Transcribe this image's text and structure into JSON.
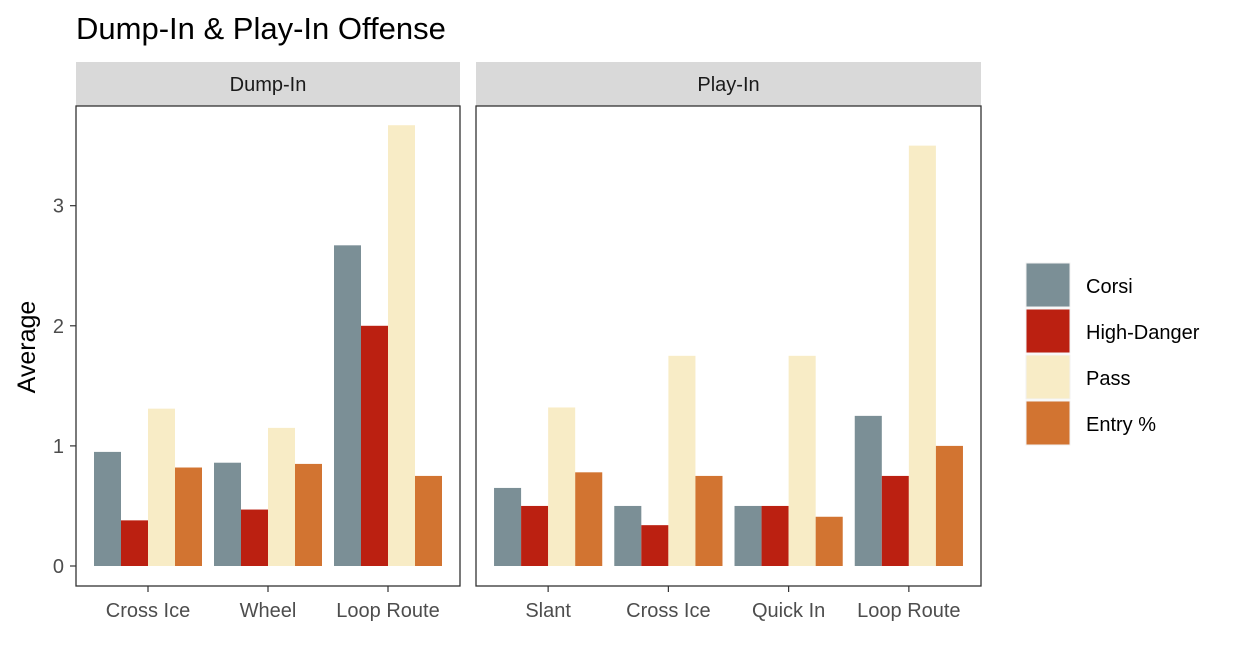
{
  "chart_data": {
    "type": "bar",
    "title": "Dump-In & Play-In Offense",
    "ylabel": "Average",
    "xlabel": "",
    "ylim": [
      0,
      3.83
    ],
    "yticks": [
      0,
      1,
      2,
      3
    ],
    "legend_position": "right",
    "series_meta": [
      {
        "name": "Corsi",
        "color": "#7b8f96"
      },
      {
        "name": "High-Danger",
        "color": "#bb2011"
      },
      {
        "name": "Pass",
        "color": "#f8ecc6"
      },
      {
        "name": "Entry %",
        "color": "#d27431"
      }
    ],
    "facets": [
      {
        "label": "Dump-In",
        "categories": [
          "Cross Ice",
          "Wheel",
          "Loop Route"
        ],
        "series": [
          {
            "name": "Corsi",
            "values": [
              0.95,
              0.86,
              2.67
            ]
          },
          {
            "name": "High-Danger",
            "values": [
              0.38,
              0.47,
              2.0
            ]
          },
          {
            "name": "Pass",
            "values": [
              1.31,
              1.15,
              3.67
            ]
          },
          {
            "name": "Entry %",
            "values": [
              0.82,
              0.85,
              0.75
            ]
          }
        ]
      },
      {
        "label": "Play-In",
        "categories": [
          "Slant",
          "Cross Ice",
          "Quick In",
          "Loop Route"
        ],
        "series": [
          {
            "name": "Corsi",
            "values": [
              0.65,
              0.5,
              0.5,
              1.25
            ]
          },
          {
            "name": "High-Danger",
            "values": [
              0.5,
              0.34,
              0.5,
              0.75
            ]
          },
          {
            "name": "Pass",
            "values": [
              1.32,
              1.75,
              1.75,
              3.5
            ]
          },
          {
            "name": "Entry %",
            "values": [
              0.78,
              0.75,
              0.41,
              1.0
            ]
          }
        ]
      }
    ]
  }
}
